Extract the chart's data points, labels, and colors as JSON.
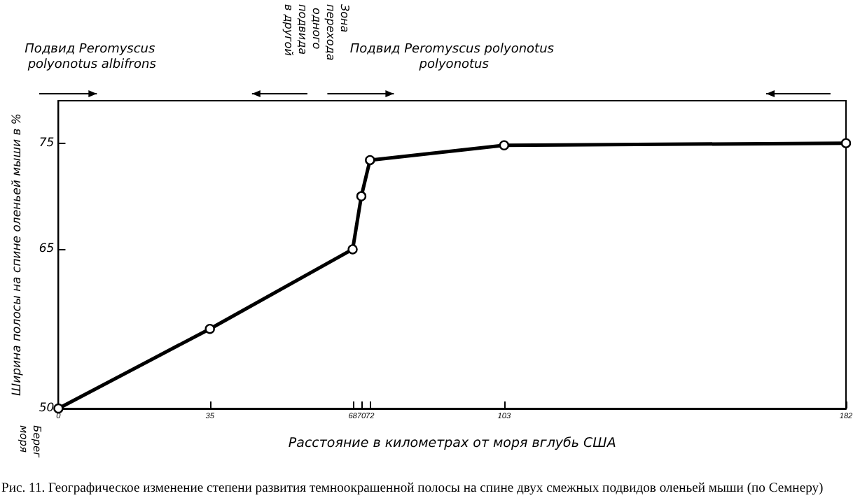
{
  "chart_data": {
    "type": "line",
    "x": [
      0,
      35,
      68,
      70,
      72,
      103,
      182
    ],
    "values": [
      50,
      57.5,
      65,
      70,
      73.4,
      74.8,
      75
    ],
    "color": "#000000",
    "marker": "circle",
    "xlim": [
      0,
      182
    ],
    "xticks": [
      0,
      35,
      68,
      70,
      72,
      103,
      182
    ],
    "ylim": [
      50,
      79
    ],
    "yticks": [
      50,
      65,
      75
    ],
    "xlabel": "Расстояние в километрах от моря вглубь США",
    "ylabel": "Ширина полосы на спине оленьей мыши в %",
    "grid": false,
    "annotations": [
      "Подвид Peromyscus polyonotus albifrons",
      "Зона перехода одного подвида в другой",
      "Подвид Peromyscus polyonotus polyonotus",
      "Берег моря",
      "Рис. 11. Географическое изменение степени развития темноокрашенной полосы на спине двух смежных подвидов оленьей мыши (по Семнеру)"
    ]
  }
}
